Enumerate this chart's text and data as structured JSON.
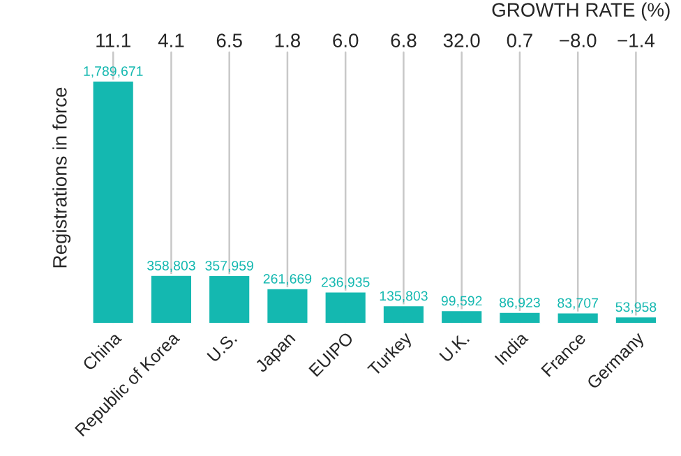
{
  "chart_data": {
    "type": "bar",
    "ylabel": "Registrations in force",
    "categories": [
      "China",
      "Republic of Korea",
      "U.S.",
      "Japan",
      "EUIPO",
      "Turkey",
      "U.K.",
      "India",
      "France",
      "Germany"
    ],
    "values": [
      1789671,
      358803,
      357959,
      261669,
      236935,
      135803,
      99592,
      86923,
      83707,
      53958
    ],
    "value_labels": [
      "1,789,671",
      "358,803",
      "357,959",
      "261,669",
      "236,935",
      "135,803",
      "99,592",
      "86,923",
      "83,707",
      "53,958"
    ],
    "color": "#14b8b0",
    "annotations": [
      "GROWTH RATE (%)",
      "11.1",
      "4.1",
      "6.5",
      "1.8",
      "6.0",
      "6.8",
      "32.0",
      "0.7",
      "−8.0",
      "−1.4"
    ],
    "grid": "x"
  }
}
